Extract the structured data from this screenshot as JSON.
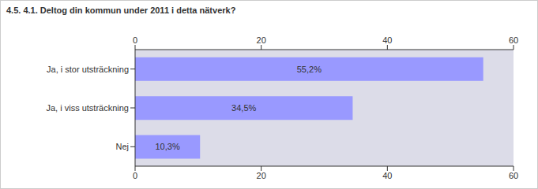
{
  "chart_data": {
    "type": "bar",
    "title": "4.5. 4.1. Deltog din kommun under 2011 i detta nätverk?",
    "orientation": "horizontal",
    "categories": [
      "Ja, i stor utsträckning",
      "Ja, i viss utsträckning",
      "Nej"
    ],
    "values": [
      55.2,
      34.5,
      10.3
    ],
    "value_labels": [
      "55,2%",
      "34,5%",
      "10,3%"
    ],
    "data_labels": true,
    "color": "#9999ff",
    "xlim": [
      0,
      60
    ],
    "xticks": [
      0,
      20,
      40,
      60
    ],
    "grid": false
  }
}
